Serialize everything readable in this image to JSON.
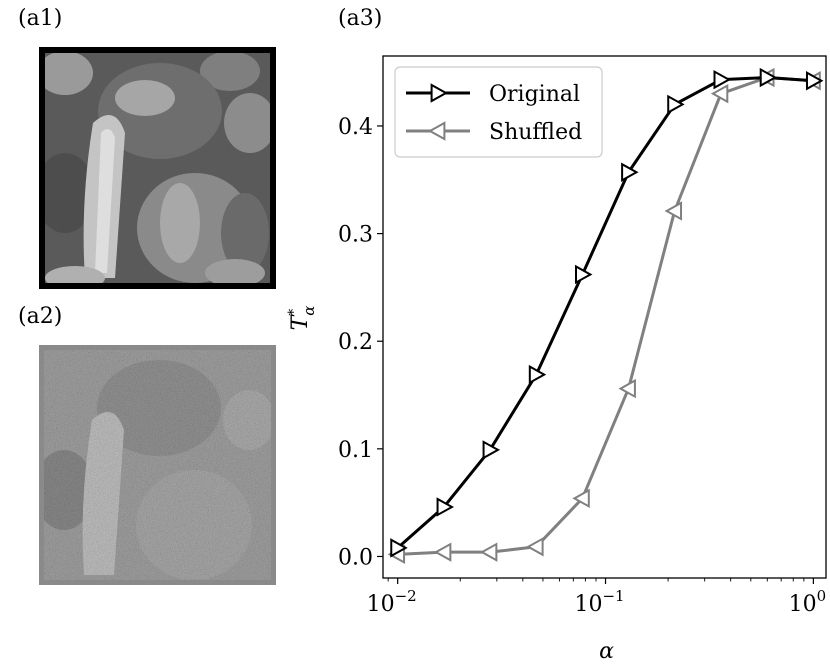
{
  "panels": {
    "a1": "(a1)",
    "a2": "(a2)",
    "a3": "(a3)"
  },
  "images": {
    "a1": {
      "subject": "peppers photograph, grayscale",
      "frame_color": "#000000"
    },
    "a2": {
      "subject": "noisy peppers photograph, grayscale",
      "frame_color": "#8a8a8a"
    }
  },
  "chart_data": {
    "type": "line",
    "xscale": "log",
    "xlim": [
      0.0085,
      1.15
    ],
    "ylim": [
      -0.02,
      0.465
    ],
    "xlabel": "α",
    "ylabel_base": "T",
    "ylabel_sup": "*",
    "ylabel_sub": "α",
    "x_ticks": [
      {
        "value": 0.01,
        "base": "10",
        "exp": "−2"
      },
      {
        "value": 0.1,
        "base": "10",
        "exp": "−1"
      },
      {
        "value": 1,
        "base": "10",
        "exp": "0"
      }
    ],
    "y_ticks": [
      "0.0",
      "0.1",
      "0.2",
      "0.3",
      "0.4"
    ],
    "legend_position": "top-left",
    "series": [
      {
        "name": "Original",
        "color": "#000000",
        "marker": "triangle-right",
        "x": [
          0.01,
          0.0167,
          0.0278,
          0.0464,
          0.0774,
          0.129,
          0.215,
          0.359,
          0.599,
          1.0
        ],
        "y": [
          0.008,
          0.046,
          0.099,
          0.169,
          0.262,
          0.357,
          0.42,
          0.443,
          0.445,
          0.442
        ]
      },
      {
        "name": "Shuffled",
        "color": "#808080",
        "marker": "triangle-left",
        "x": [
          0.01,
          0.0167,
          0.0278,
          0.0464,
          0.0774,
          0.129,
          0.215,
          0.359,
          0.599,
          1.0
        ],
        "y": [
          0.002,
          0.004,
          0.004,
          0.009,
          0.054,
          0.156,
          0.321,
          0.43,
          0.445,
          0.442
        ]
      }
    ]
  }
}
